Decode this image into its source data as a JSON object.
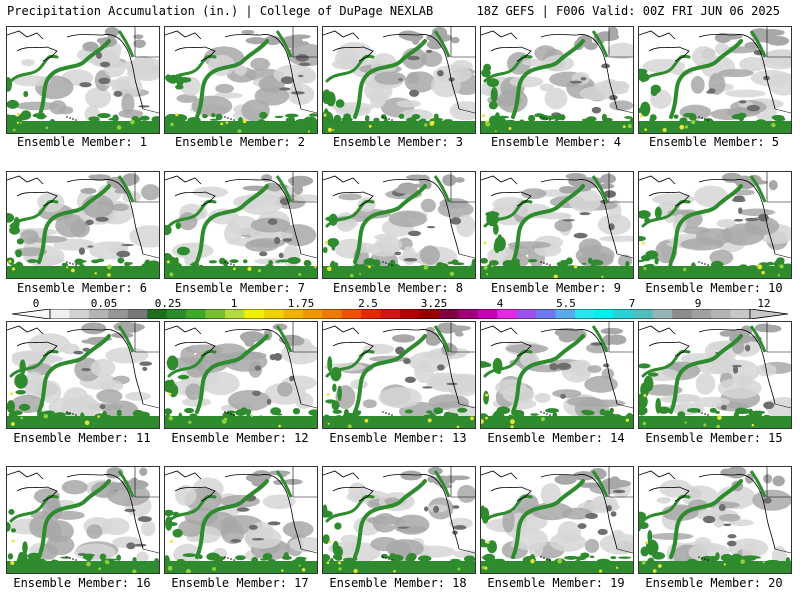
{
  "header": {
    "left": "Precipitation Accumulation (in.) | College of DuPage NEXLAB",
    "right": "18Z GEFS | F006 Valid: 00Z FRI JUN 06 2025"
  },
  "members": [
    "Ensemble Member: 1",
    "Ensemble Member: 2",
    "Ensemble Member: 3",
    "Ensemble Member: 4",
    "Ensemble Member: 5",
    "Ensemble Member: 6",
    "Ensemble Member: 7",
    "Ensemble Member: 8",
    "Ensemble Member: 9",
    "Ensemble Member: 10",
    "Ensemble Member: 11",
    "Ensemble Member: 12",
    "Ensemble Member: 13",
    "Ensemble Member: 14",
    "Ensemble Member: 15",
    "Ensemble Member: 16",
    "Ensemble Member: 17",
    "Ensemble Member: 18",
    "Ensemble Member: 19",
    "Ensemble Member: 20"
  ],
  "colorbar": {
    "labels": [
      "0",
      "0.05",
      "0.25",
      "1",
      "1.75",
      "2.5",
      "3.25",
      "4",
      "5.5",
      "7",
      "9",
      "12"
    ],
    "colors": [
      "#f0f0f0",
      "#d2d2d2",
      "#b4b4b4",
      "#969696",
      "#787878",
      "#1e6e1e",
      "#2a8c2a",
      "#3caa28",
      "#78be32",
      "#b4dc3c",
      "#f0f000",
      "#f0d200",
      "#f0b400",
      "#f09600",
      "#f07800",
      "#f05000",
      "#e62800",
      "#d21414",
      "#b40000",
      "#960000",
      "#800040",
      "#a00078",
      "#c800b4",
      "#e628e6",
      "#a050f0",
      "#6e78f0",
      "#5aaaf0",
      "#28e6f0",
      "#00f0f0",
      "#28d2d2",
      "#50bebe",
      "#96b4b4",
      "#8c8c8c",
      "#a0a0a0",
      "#b4b4b4",
      "#c8c8c8"
    ]
  },
  "map_colors": {
    "ocean": "#ffffff",
    "light_gray": "#d6d6d6",
    "mid_gray": "#a8a8a8",
    "dark_gray": "#6e6e6e",
    "green": "#2e8b2e",
    "lime": "#8fd03a",
    "yellow": "#e6e632",
    "coast": "#000000"
  }
}
